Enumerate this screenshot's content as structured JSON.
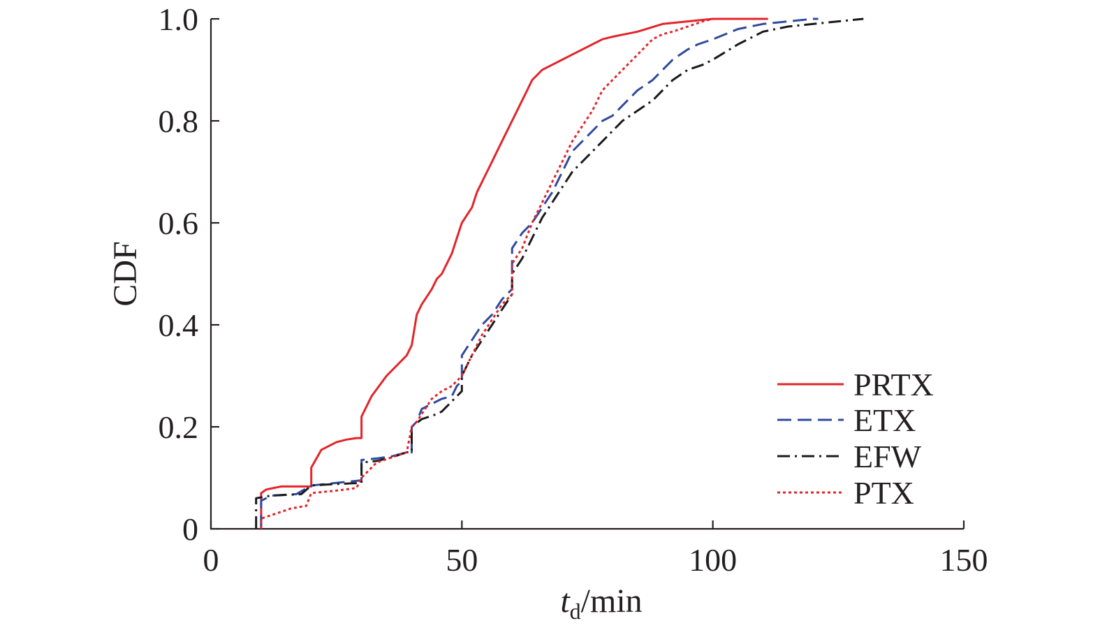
{
  "chart_data": {
    "type": "line",
    "title": "",
    "xlabel_main": "t",
    "xlabel_sub": "d",
    "xlabel_unit": "/min",
    "ylabel": "CDF",
    "xlim": [
      0,
      150
    ],
    "ylim": [
      0,
      1.0
    ],
    "x_ticks": [
      0,
      50,
      100,
      150
    ],
    "x_tick_labels": [
      "0",
      "50",
      "100",
      "150"
    ],
    "y_ticks": [
      0,
      0.2,
      0.4,
      0.6,
      0.8,
      1.0
    ],
    "y_tick_labels": [
      "0",
      "0.2",
      "0.4",
      "0.6",
      "0.8",
      "1.0"
    ],
    "grid": false,
    "legend_position": "bottom-right",
    "series": [
      {
        "name": "PRTX",
        "color": "#e3242b",
        "dash": "solid",
        "x": [
          10,
          10,
          11,
          14,
          20,
          20,
          22,
          25,
          27,
          29,
          30,
          30,
          32,
          35,
          37,
          39,
          40,
          41,
          42,
          44,
          45,
          46,
          47,
          48,
          49,
          50,
          52,
          53,
          54,
          55,
          56,
          57,
          58,
          59,
          60,
          61,
          62,
          63,
          64,
          65,
          66,
          68,
          70,
          72,
          74,
          76,
          78,
          80,
          85,
          90,
          95,
          100,
          105,
          111
        ],
        "y": [
          0,
          0.07,
          0.077,
          0.083,
          0.083,
          0.12,
          0.155,
          0.17,
          0.175,
          0.178,
          0.178,
          0.22,
          0.26,
          0.3,
          0.32,
          0.34,
          0.36,
          0.42,
          0.44,
          0.47,
          0.49,
          0.5,
          0.52,
          0.54,
          0.57,
          0.6,
          0.63,
          0.66,
          0.68,
          0.7,
          0.72,
          0.74,
          0.76,
          0.78,
          0.8,
          0.82,
          0.84,
          0.86,
          0.88,
          0.89,
          0.9,
          0.91,
          0.92,
          0.93,
          0.94,
          0.95,
          0.96,
          0.965,
          0.975,
          0.99,
          0.995,
          1.0,
          1.0,
          1.0
        ]
      },
      {
        "name": "ETX",
        "color": "#2e4a9e",
        "dash": "long-dash",
        "x": [
          10,
          10,
          12,
          17,
          20,
          25,
          30,
          30,
          33,
          36,
          39,
          40,
          40,
          41,
          42,
          44,
          46,
          48,
          49,
          50,
          50,
          52,
          54,
          56,
          58,
          60,
          60,
          62,
          64,
          66,
          68,
          70,
          72,
          75,
          78,
          80,
          82,
          85,
          88,
          90,
          92,
          95,
          97,
          100,
          105,
          110,
          115,
          120,
          121
        ],
        "y": [
          0,
          0.055,
          0.065,
          0.068,
          0.085,
          0.09,
          0.095,
          0.135,
          0.138,
          0.142,
          0.15,
          0.15,
          0.2,
          0.21,
          0.235,
          0.245,
          0.255,
          0.26,
          0.28,
          0.29,
          0.34,
          0.37,
          0.4,
          0.42,
          0.45,
          0.47,
          0.55,
          0.58,
          0.6,
          0.63,
          0.66,
          0.7,
          0.74,
          0.77,
          0.8,
          0.81,
          0.83,
          0.86,
          0.88,
          0.9,
          0.92,
          0.94,
          0.95,
          0.96,
          0.98,
          0.99,
          0.995,
          1.0,
          1.0
        ]
      },
      {
        "name": "EFW",
        "color": "#1a1a1a",
        "dash": "dash-dot",
        "x": [
          9,
          9,
          12,
          18,
          20,
          25,
          30,
          30,
          33,
          36,
          39,
          40,
          40,
          42,
          45,
          46,
          48,
          50,
          50,
          52,
          54,
          56,
          58,
          60,
          60,
          62,
          64,
          66,
          68,
          70,
          72,
          75,
          78,
          80,
          82,
          85,
          88,
          90,
          92,
          95,
          98,
          100,
          105,
          110,
          115,
          120,
          125,
          130
        ],
        "y": [
          0,
          0.06,
          0.065,
          0.068,
          0.085,
          0.088,
          0.09,
          0.13,
          0.133,
          0.14,
          0.15,
          0.15,
          0.2,
          0.215,
          0.225,
          0.23,
          0.25,
          0.27,
          0.3,
          0.34,
          0.37,
          0.4,
          0.43,
          0.46,
          0.5,
          0.53,
          0.57,
          0.61,
          0.64,
          0.67,
          0.7,
          0.73,
          0.76,
          0.78,
          0.8,
          0.82,
          0.84,
          0.86,
          0.88,
          0.9,
          0.91,
          0.92,
          0.95,
          0.975,
          0.985,
          0.99,
          0.995,
          1.0
        ]
      },
      {
        "name": "PTX",
        "color": "#e3242b",
        "dash": "dotted",
        "x": [
          10,
          10,
          13,
          16,
          19,
          20,
          25,
          29,
          30,
          33,
          36,
          39,
          40,
          41,
          42,
          44,
          46,
          48,
          50,
          52,
          54,
          56,
          58,
          60,
          60,
          62,
          64,
          66,
          68,
          70,
          72,
          74,
          76,
          78,
          80,
          82,
          84,
          86,
          88,
          90,
          92,
          95,
          98,
          100,
          105,
          110
        ],
        "y": [
          0,
          0.02,
          0.03,
          0.04,
          0.045,
          0.07,
          0.075,
          0.08,
          0.1,
          0.13,
          0.14,
          0.15,
          0.2,
          0.21,
          0.225,
          0.255,
          0.27,
          0.28,
          0.3,
          0.34,
          0.38,
          0.41,
          0.44,
          0.46,
          0.52,
          0.55,
          0.6,
          0.64,
          0.68,
          0.72,
          0.76,
          0.79,
          0.82,
          0.86,
          0.88,
          0.9,
          0.92,
          0.94,
          0.96,
          0.97,
          0.975,
          0.985,
          0.995,
          1.0,
          1.0,
          1.0
        ]
      }
    ]
  }
}
